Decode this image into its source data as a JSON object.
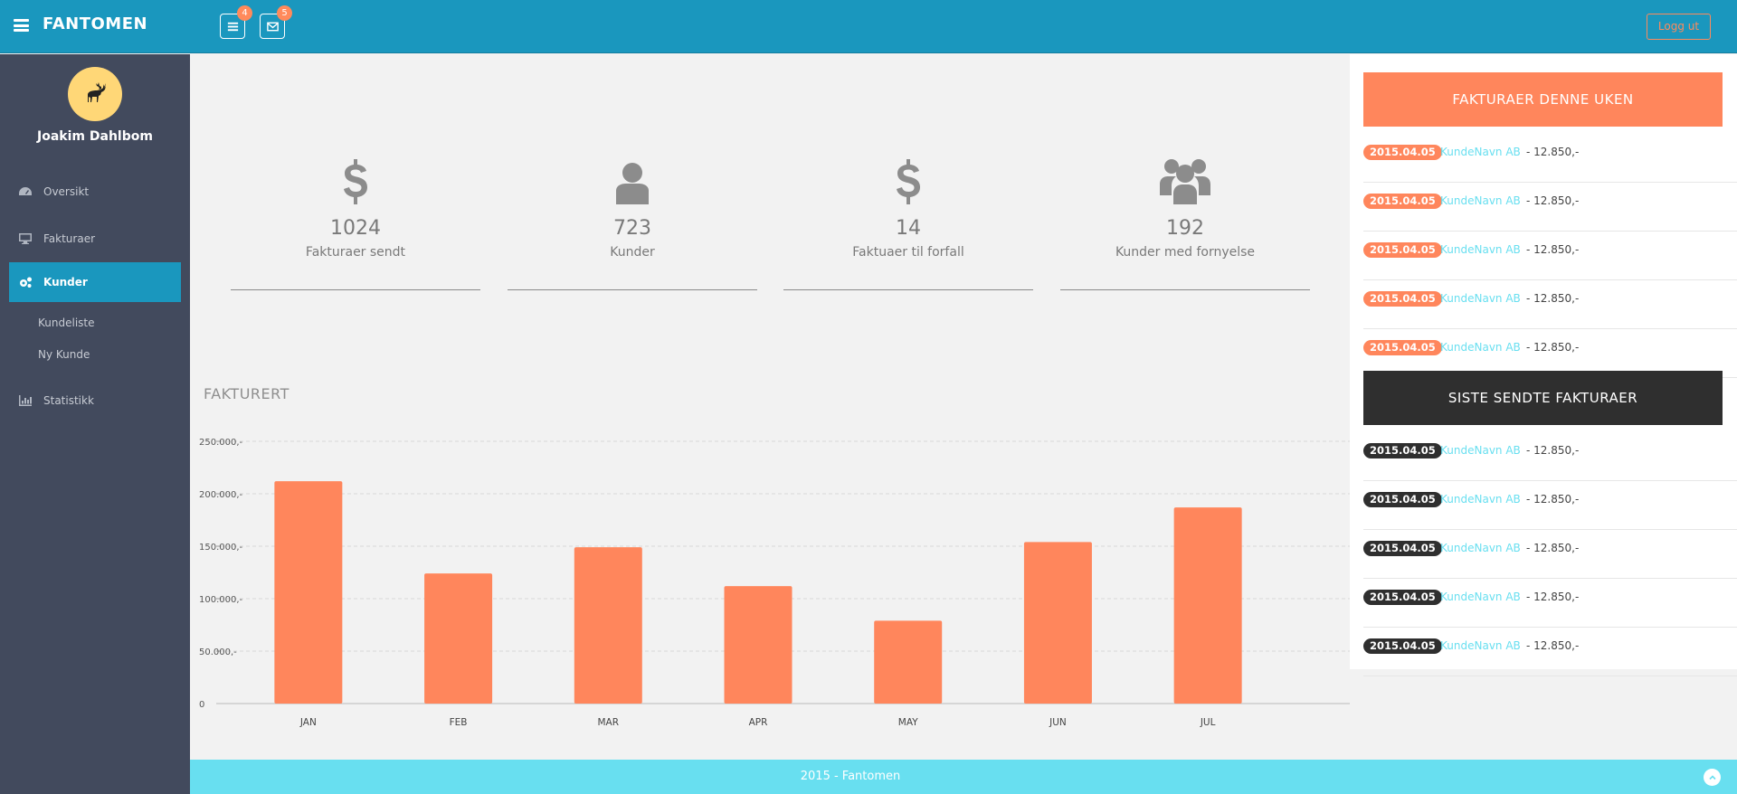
{
  "topbar": {
    "brand": "FANTOMEN",
    "tasks_badge": "4",
    "mail_badge": "5",
    "logout_label": "Logg ut"
  },
  "sidebar": {
    "username": "Joakim Dahlbom",
    "items": [
      {
        "label": "Oversikt",
        "icon": "dashboard-icon"
      },
      {
        "label": "Fakturaer",
        "icon": "desktop-icon"
      },
      {
        "label": "Kunder",
        "icon": "cogs-icon",
        "active": true
      },
      {
        "label": "Statistikk",
        "icon": "bar-chart-icon"
      }
    ],
    "subitems": [
      "Kundeliste",
      "Ny Kunde"
    ]
  },
  "stats": [
    {
      "icon": "dollar-icon",
      "value": "1024",
      "label": "Fakturaer sendt"
    },
    {
      "icon": "user-icon",
      "value": "723",
      "label": "Kunder"
    },
    {
      "icon": "dollar-icon",
      "value": "14",
      "label": "Faktuaer til forfall"
    },
    {
      "icon": "users-icon",
      "value": "192",
      "label": "Kunder med fornyelse"
    }
  ],
  "chart_title": "FAKTURERT",
  "chart_data": {
    "type": "bar",
    "categories": [
      "JAN",
      "FEB",
      "MAR",
      "APR",
      "MAY",
      "JUN",
      "JUL"
    ],
    "values": [
      212000,
      124000,
      149000,
      112000,
      79000,
      154000,
      187000
    ],
    "ylim": [
      0,
      250000
    ],
    "yticks": [
      0,
      50000,
      100000,
      150000,
      200000,
      250000
    ],
    "ytick_labels": [
      "0",
      "50.000,-",
      "100.000,-",
      "150.000,-",
      "200.000,-",
      "250.000,-"
    ],
    "grid": true,
    "bar_color": "#ff865c"
  },
  "panel_week": {
    "title": "FAKTURAER DENNE UKEN",
    "items": [
      {
        "date": "2015.04.05",
        "customer": "KundeNavn AB",
        "amount": " - 12.850,-"
      },
      {
        "date": "2015.04.05",
        "customer": "KundeNavn AB",
        "amount": " - 12.850,-"
      },
      {
        "date": "2015.04.05",
        "customer": "KundeNavn AB",
        "amount": " - 12.850,-"
      },
      {
        "date": "2015.04.05",
        "customer": "KundeNavn AB",
        "amount": " - 12.850,-"
      },
      {
        "date": "2015.04.05",
        "customer": "KundeNavn AB",
        "amount": " - 12.850,-"
      }
    ]
  },
  "panel_sent": {
    "title": "SISTE SENDTE FAKTURAER",
    "items": [
      {
        "date": "2015.04.05",
        "customer": "KundeNavn AB",
        "amount": " - 12.850,-"
      },
      {
        "date": "2015.04.05",
        "customer": "KundeNavn AB",
        "amount": " - 12.850,-"
      },
      {
        "date": "2015.04.05",
        "customer": "KundeNavn AB",
        "amount": " - 12.850,-"
      },
      {
        "date": "2015.04.05",
        "customer": "KundeNavn AB",
        "amount": " - 12.850,-"
      },
      {
        "date": "2015.04.05",
        "customer": "KundeNavn AB",
        "amount": " - 12.850,-"
      }
    ]
  },
  "footer": {
    "text": "2015 - Fantomen"
  },
  "colors": {
    "topbar": "#1a97be",
    "sidebar": "#424a5d",
    "accent": "#ff865c",
    "footer": "#68dff0"
  }
}
